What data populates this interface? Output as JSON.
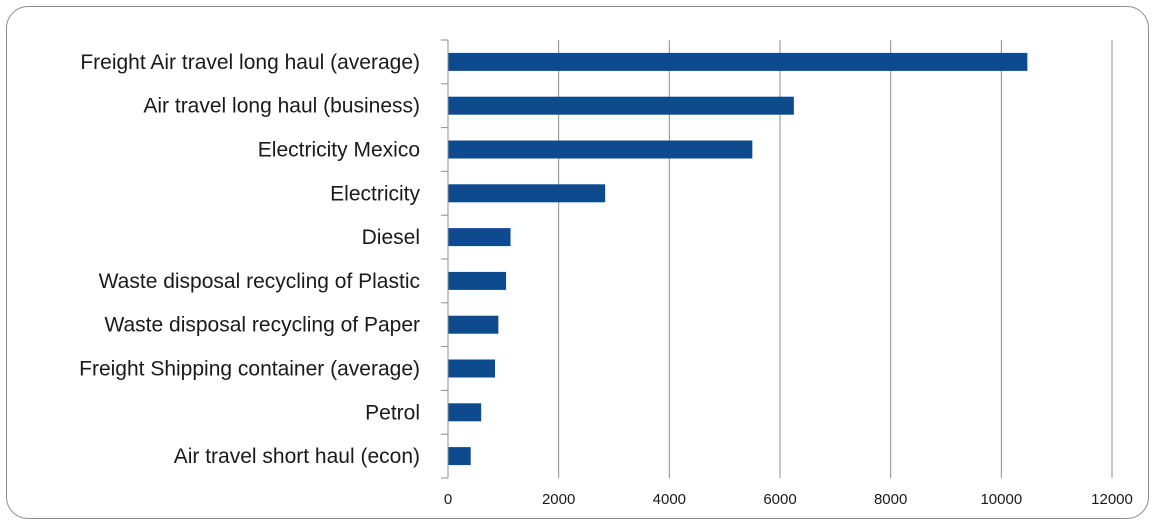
{
  "chart_data": {
    "type": "bar",
    "orientation": "horizontal",
    "categories": [
      "Freight Air travel long haul (average)",
      "Air travel long haul (business)",
      "Electricity Mexico",
      "Electricity",
      "Diesel",
      "Waste disposal recycling of Plastic",
      "Waste disposal recycling of Paper",
      "Freight Shipping container (average)",
      "Petrol",
      "Air travel short haul (econ)"
    ],
    "values": [
      10470,
      6250,
      5500,
      2840,
      1130,
      1050,
      910,
      850,
      600,
      410
    ],
    "xlim": [
      0,
      12000
    ],
    "xticks": [
      "0",
      "2000",
      "4000",
      "6000",
      "8000",
      "10000",
      "12000"
    ],
    "grid": true,
    "legend": "none",
    "title": "",
    "xlabel": "",
    "ylabel": "",
    "colors": {
      "bar": "#0d4a8e",
      "grid": "#8c8c8c",
      "axis": "#8c8c8c"
    }
  }
}
